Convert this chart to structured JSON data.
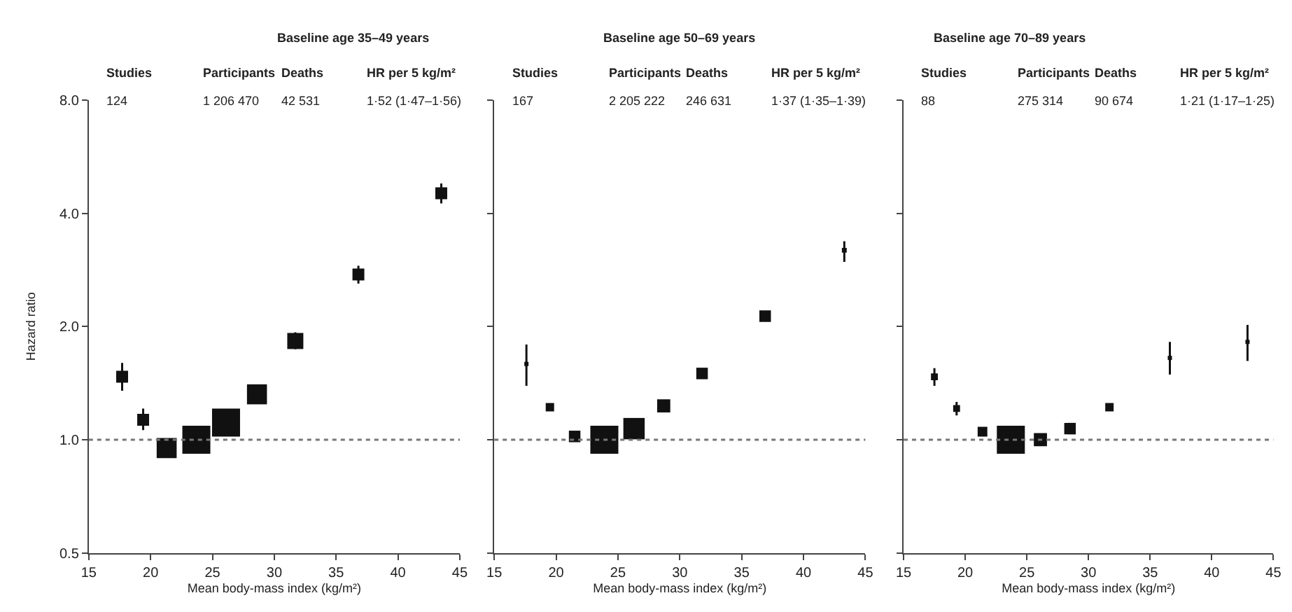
{
  "chart_data": [
    {
      "type": "bubble",
      "title": "Baseline age 35–49 years",
      "xlabel": "Mean body-mass index (kg/m²)",
      "ylabel": "Hazard ratio",
      "annotations": [
        "Studies",
        "124",
        "Participants",
        "1 206 470",
        "Deaths",
        "42 531",
        "HR per 5 kg/m²",
        "1·52 (1·47–1·56)"
      ],
      "x": [
        17.7,
        19.4,
        21.3,
        23.7,
        26.1,
        28.6,
        31.7,
        36.8,
        43.5
      ],
      "series": [
        {
          "color": "#111111",
          "values": [
            1.47,
            1.13,
            0.95,
            1.0,
            1.11,
            1.32,
            1.83,
            2.75,
            4.52
          ],
          "sizes": [
            0.18,
            0.18,
            0.51,
            1,
            1,
            0.51,
            0.33,
            0.18,
            0.18
          ],
          "errors": [
            [
              1.35,
              1.6
            ],
            [
              1.06,
              1.21
            ],
            null,
            null,
            null,
            null,
            [
              1.74,
              1.93
            ],
            [
              2.6,
              2.9
            ],
            [
              4.25,
              4.8
            ]
          ]
        }
      ],
      "marker": "square",
      "log": "y",
      "xlim": [
        15,
        45
      ],
      "xticks": [
        15,
        20,
        25,
        30,
        35,
        40,
        45
      ],
      "ylim": [
        0.5,
        8
      ],
      "yticks": [
        {
          "value": 0.5,
          "label": "0.5"
        },
        {
          "value": 1,
          "label": "1.0"
        },
        {
          "value": 2,
          "label": "2.0"
        },
        {
          "value": 4,
          "label": "4.0"
        },
        {
          "value": 8,
          "label": "8.0"
        }
      ],
      "ref_lines": [
        {
          "axis": "y",
          "value": 1,
          "color": "#777777",
          "line_style": "dotted"
        }
      ]
    },
    {
      "type": "bubble",
      "title": "Baseline age 50–69 years",
      "xlabel": "Mean body-mass index (kg/m²)",
      "annotations": [
        "Studies",
        "167",
        "Participants",
        "2 205 222",
        "Deaths",
        "246 631",
        "HR per 5 kg/m²",
        "1·37 (1·35–1·39)"
      ],
      "x": [
        17.6,
        19.5,
        21.5,
        23.9,
        26.3,
        28.7,
        31.8,
        36.9,
        43.3
      ],
      "series": [
        {
          "color": "#111111",
          "values": [
            1.59,
            1.22,
            1.02,
            1.0,
            1.07,
            1.23,
            1.5,
            2.13,
            3.19
          ],
          "sizes": [
            0.01,
            0.09,
            0.17,
            1,
            0.58,
            0.22,
            0.17,
            0.17,
            0.03
          ],
          "errors": [
            [
              1.39,
              1.79
            ],
            null,
            null,
            null,
            null,
            null,
            null,
            null,
            [
              2.97,
              3.37
            ]
          ]
        }
      ],
      "marker": "square",
      "log": "y",
      "xlim": [
        15,
        45
      ],
      "xticks": [
        15,
        20,
        25,
        30,
        35,
        40,
        45
      ],
      "ylim": [
        0.5,
        8
      ],
      "yticks": [
        {
          "value": 0.5,
          "label": null
        },
        {
          "value": 1,
          "label": null
        },
        {
          "value": 2,
          "label": null
        },
        {
          "value": 4,
          "label": null
        },
        {
          "value": 8,
          "label": null
        }
      ],
      "tick_labels": "x",
      "ref_lines": [
        {
          "axis": "y",
          "value": 1,
          "color": "#777777",
          "line_style": "dotted"
        }
      ]
    },
    {
      "type": "bubble",
      "title": "Baseline age 70–89 years",
      "xlabel": "Mean body-mass index (kg/m²)",
      "annotations": [
        "Studies",
        "88",
        "Participants",
        "275 314",
        "Deaths",
        "90 674",
        "HR per 5 kg/m²",
        "1·21 (1·17–1·25)"
      ],
      "x": [
        17.5,
        19.3,
        21.4,
        23.7,
        26.1,
        28.5,
        31.7,
        36.6,
        42.9
      ],
      "series": [
        {
          "color": "#111111",
          "values": [
            1.47,
            1.21,
            1.05,
            1.0,
            1.0,
            1.07,
            1.22,
            1.65,
            1.82
          ],
          "sizes": [
            0.06,
            0.06,
            0.12,
            1,
            0.22,
            0.17,
            0.09,
            0.01,
            0.01
          ],
          "errors": [
            [
              1.39,
              1.55
            ],
            [
              1.16,
              1.26
            ],
            null,
            null,
            null,
            null,
            null,
            [
              1.49,
              1.82
            ],
            [
              1.62,
              2.02
            ]
          ]
        }
      ],
      "marker": "square",
      "log": "y",
      "xlim": [
        15,
        45
      ],
      "xticks": [
        15,
        20,
        25,
        30,
        35,
        40,
        45
      ],
      "ylim": [
        0.5,
        8
      ],
      "yticks": [
        {
          "value": 0.5,
          "label": null
        },
        {
          "value": 1,
          "label": null
        },
        {
          "value": 2,
          "label": null
        },
        {
          "value": 4,
          "label": null
        },
        {
          "value": 8,
          "label": null
        }
      ],
      "tick_labels": "x",
      "ref_lines": [
        {
          "axis": "y",
          "value": 1,
          "color": "#777777",
          "line_style": "dotted"
        }
      ]
    }
  ]
}
